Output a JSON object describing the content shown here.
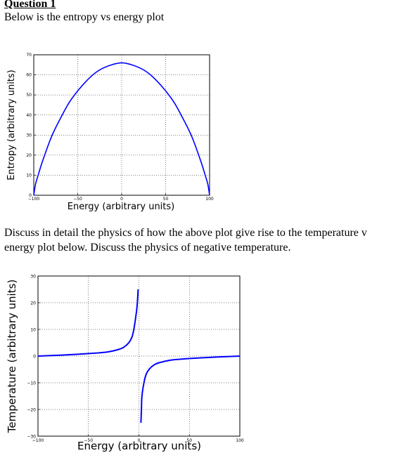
{
  "question": {
    "heading": "Question 1",
    "intro": "Below is the entropy vs energy plot"
  },
  "discussion": {
    "line1": "Discuss in detail the physics of how the above plot give rise to the temperature v",
    "line2": "energy plot below. Discuss the physics of negative temperature."
  },
  "chart_data": [
    {
      "type": "line",
      "title": "",
      "xlabel": "Energy (arbitrary units)",
      "ylabel": "Entropy (arbitrary units)",
      "xlim": [
        -100,
        100
      ],
      "ylim": [
        0,
        70
      ],
      "xticks": [
        -100,
        -50,
        0,
        50,
        100
      ],
      "xtick_labels": [
        "−100",
        "−50",
        "0",
        "50",
        "100"
      ],
      "yticks": [
        0,
        10,
        20,
        30,
        40,
        50,
        60,
        70
      ],
      "ytick_labels": [
        "0",
        "10",
        "20",
        "30",
        "40",
        "50",
        "60",
        "70"
      ],
      "grid": true,
      "line_color": "#0000ff",
      "series": [
        {
          "x": [
            -100,
            -98,
            -95,
            -90,
            -80,
            -70,
            -60,
            -50,
            -40,
            -30,
            -20,
            -10,
            0,
            10,
            20,
            30,
            40,
            50,
            60,
            70,
            80,
            90,
            95,
            98,
            100
          ],
          "values": [
            0,
            5.5,
            10,
            17,
            29,
            38,
            46,
            52,
            57,
            61,
            63.6,
            65.2,
            66,
            65.2,
            63.6,
            61,
            57,
            52,
            46,
            38,
            29,
            17,
            10,
            5.5,
            0
          ]
        }
      ]
    },
    {
      "type": "line",
      "title": "",
      "xlabel": "Energy (arbitrary units)",
      "ylabel": "Temperature (arbitrary units)",
      "xlim": [
        -100,
        100
      ],
      "ylim": [
        -30,
        30
      ],
      "xticks": [
        -100,
        -50,
        0,
        50,
        100
      ],
      "xtick_labels": [
        "−100",
        "−50",
        "0",
        "50",
        "100"
      ],
      "yticks": [
        -30,
        -20,
        -10,
        0,
        10,
        20,
        30
      ],
      "ytick_labels": [
        "−30",
        "−20",
        "−10",
        "0",
        "10",
        "20",
        "30"
      ],
      "grid": true,
      "line_color": "#0000ff",
      "series": [
        {
          "x": [
            -100,
            -80,
            -60,
            -40,
            -30,
            -20,
            -15,
            -10,
            -7,
            -5,
            -3,
            -2,
            -1.2,
            -0.8
          ],
          "values": [
            0,
            0.3,
            0.7,
            1.2,
            1.6,
            2.5,
            3.3,
            5,
            7,
            10,
            15,
            18,
            22,
            25
          ]
        },
        {
          "x": [
            2,
            2.5,
            3,
            5,
            7,
            10,
            15,
            20,
            30,
            40,
            60,
            80,
            100
          ],
          "values": [
            -25,
            -20,
            -15,
            -10,
            -7,
            -5,
            -3.3,
            -2.5,
            -1.6,
            -1.2,
            -0.7,
            -0.3,
            0
          ]
        }
      ]
    }
  ]
}
